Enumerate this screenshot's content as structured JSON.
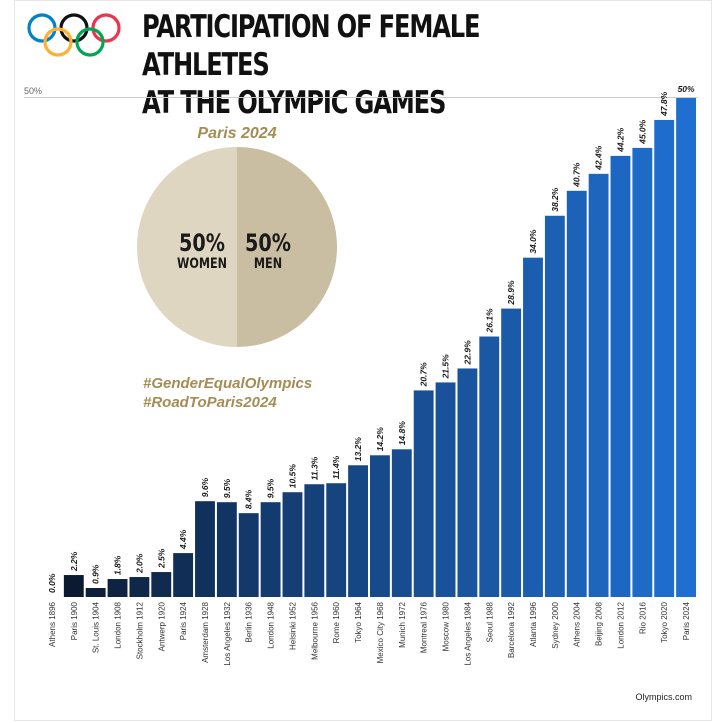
{
  "title_lines": [
    "PARTICIPATION OF FEMALE ATHLETES",
    "AT THE OLYMPIC GAMES"
  ],
  "logo": "olympic-rings",
  "top_gridline_label": "50%",
  "pie": {
    "heading": "Paris 2024",
    "slices": [
      {
        "label": "WOMEN",
        "value_label": "50%",
        "value": 50,
        "color": "#ded6c1"
      },
      {
        "label": "MEN",
        "value_label": "50%",
        "value": 50,
        "color": "#c9bda2"
      }
    ]
  },
  "hashtags": [
    "#GenderEqualOlympics",
    "#RoadToParis2024"
  ],
  "source": "Olympics.com",
  "colors": {
    "accent_gold": "#a38d55",
    "bar_start": "#0b1426",
    "bar_end": "#1f6fd0"
  },
  "chart_data": {
    "type": "bar",
    "title": "PARTICIPATION OF FEMALE ATHLETES AT THE OLYMPIC GAMES",
    "ylim": [
      0,
      50
    ],
    "grid": false,
    "categories": [
      "Athens 1896",
      "Paris 1900",
      "St. Louis 1904",
      "London 1908",
      "Stockholm 1912",
      "Antwerp 1920",
      "Paris 1924",
      "Amsterdam 1928",
      "Los Angeles 1932",
      "Berlin 1936",
      "London 1948",
      "Helsinki 1952",
      "Melbourne 1956",
      "Rome 1960",
      "Tokyo 1964",
      "Mexico City 1968",
      "Munich 1972",
      "Montreal 1976",
      "Moscow 1980",
      "Los Angeles 1984",
      "Seoul 1988",
      "Barcelona 1992",
      "Atlanta 1996",
      "Sydney 2000",
      "Athens 2004",
      "Beijing 2008",
      "London 2012",
      "Rio 2016",
      "Tokyo 2020",
      "Paris 2024"
    ],
    "values": [
      0.0,
      2.2,
      0.9,
      1.8,
      2.0,
      2.5,
      4.4,
      9.6,
      9.5,
      8.4,
      9.5,
      10.5,
      11.3,
      11.4,
      13.2,
      14.2,
      14.8,
      20.7,
      21.5,
      22.9,
      26.1,
      28.9,
      34.0,
      38.2,
      40.7,
      42.4,
      44.2,
      45.0,
      47.8,
      50
    ],
    "data_labels": [
      "0.0%",
      "2.2%",
      "0.9%",
      "1.8%",
      "2.0%",
      "2.5%",
      "4.4%",
      "9.6%",
      "9.5%",
      "8.4%",
      "9.5%",
      "10.5%",
      "11.3%",
      "11.4%",
      "13.2%",
      "14.2%",
      "14.8%",
      "20.7%",
      "21.5%",
      "22.9%",
      "26.1%",
      "28.9%",
      "34.0%",
      "38.2%",
      "40.7%",
      "42.4%",
      "44.2%",
      "45.0%",
      "47.8%",
      "50%"
    ]
  }
}
